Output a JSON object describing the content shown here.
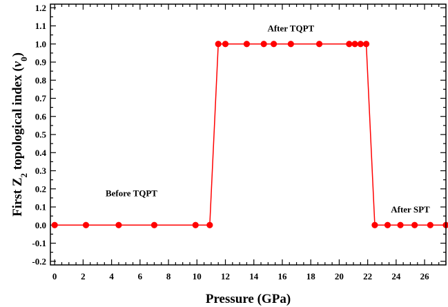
{
  "chart_data": {
    "type": "line",
    "xlabel": "Pressure (GPa)",
    "ylabel_parts": [
      "First Z",
      "2",
      " topological index (",
      "ν",
      "0",
      ")"
    ],
    "xlim": [
      -0.3,
      27.5
    ],
    "ylim": [
      -0.22,
      1.22
    ],
    "xticks": [
      0,
      2,
      4,
      6,
      8,
      10,
      12,
      14,
      16,
      18,
      20,
      22,
      24,
      26
    ],
    "xtick_labels": [
      "0",
      "2",
      "4",
      "6",
      "8",
      "10",
      "12",
      "14",
      "16",
      "18",
      "20",
      "22",
      "24",
      "26"
    ],
    "yticks": [
      -0.2,
      -0.1,
      0.0,
      0.1,
      0.2,
      0.3,
      0.4,
      0.5,
      0.6,
      0.7,
      0.8,
      0.9,
      1.0,
      1.1,
      1.2
    ],
    "ytick_labels": [
      "-0.2",
      "-0.1",
      "0.0",
      "0.1",
      "0.2",
      "0.3",
      "0.4",
      "0.5",
      "0.6",
      "0.7",
      "0.8",
      "0.9",
      "1.0",
      "1.1",
      "1.2"
    ],
    "x_minor_step": 0.5,
    "y_minor_step": 0.05,
    "grid": false,
    "series": [
      {
        "color": "#ff0000",
        "points": [
          [
            0,
            0
          ],
          [
            2.2,
            0
          ],
          [
            4.5,
            0
          ],
          [
            7.0,
            0
          ],
          [
            9.9,
            0
          ],
          [
            10.9,
            0
          ],
          [
            11.5,
            1
          ],
          [
            12.0,
            1
          ],
          [
            13.5,
            1
          ],
          [
            14.7,
            1
          ],
          [
            15.4,
            1
          ],
          [
            16.6,
            1
          ],
          [
            18.6,
            1
          ],
          [
            20.7,
            1
          ],
          [
            21.1,
            1
          ],
          [
            21.5,
            1
          ],
          [
            21.9,
            1
          ],
          [
            22.5,
            0
          ],
          [
            23.4,
            0
          ],
          [
            24.3,
            0
          ],
          [
            25.3,
            0
          ],
          [
            26.4,
            0
          ],
          [
            27.5,
            0
          ]
        ]
      }
    ],
    "annotations": [
      {
        "text": "Before TQPT",
        "x": 5.4,
        "y": 0.16
      },
      {
        "text": "After TQPT",
        "x": 16.6,
        "y": 1.07
      },
      {
        "text": "After SPT",
        "x": 25.0,
        "y": 0.07
      }
    ]
  }
}
